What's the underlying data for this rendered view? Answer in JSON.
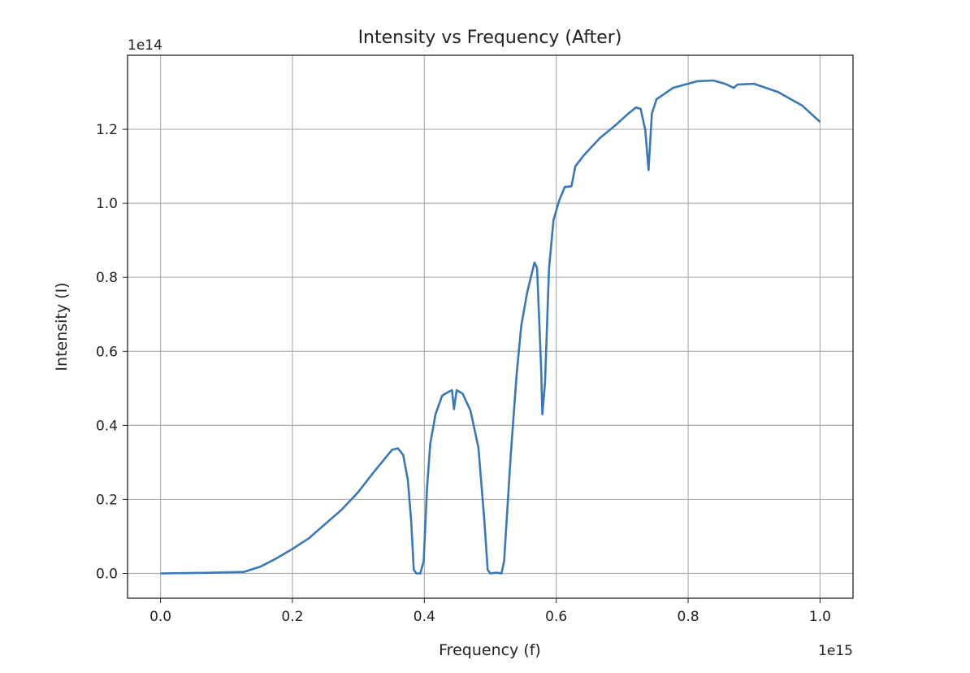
{
  "chart_data": {
    "type": "line",
    "title": "Intensity vs Frequency (After)",
    "xlabel": "Frequency (f)",
    "ylabel": "Intensity (I)",
    "x_offset_text": "1e15",
    "y_offset_text": "1e14",
    "xlim": [
      -0.05,
      1.05
    ],
    "ylim": [
      -0.067,
      1.4
    ],
    "xticks": [
      "0.0",
      "0.2",
      "0.4",
      "0.6",
      "0.8",
      "1.0"
    ],
    "yticks": [
      "0.0",
      "0.2",
      "0.4",
      "0.6",
      "0.8",
      "1.0",
      "1.2"
    ],
    "grid": true,
    "line_color": "#3b78b5",
    "series": [
      {
        "x": [
          0,
          0.077,
          0.126,
          0.151,
          0.175,
          0.2,
          0.225,
          0.25,
          0.274,
          0.299,
          0.323,
          0.341,
          0.351,
          0.36,
          0.368,
          0.375,
          0.38,
          0.384,
          0.388,
          0.394,
          0.399,
          0.404,
          0.409,
          0.417,
          0.427,
          0.436,
          0.442,
          0.445,
          0.449,
          0.458,
          0.47,
          0.482,
          0.491,
          0.496,
          0.5,
          0.509,
          0.517,
          0.521,
          0.531,
          0.54,
          0.547,
          0.556,
          0.567,
          0.571,
          0.577,
          0.579,
          0.583,
          0.589,
          0.596,
          0.605,
          0.613,
          0.623,
          0.629,
          0.642,
          0.666,
          0.691,
          0.709,
          0.721,
          0.728,
          0.735,
          0.74,
          0.745,
          0.752,
          0.777,
          0.814,
          0.838,
          0.856,
          0.869,
          0.875,
          0.9,
          0.936,
          0.973,
          1.0
        ],
        "y": [
          0,
          0.002,
          0.004,
          0.018,
          0.04,
          0.066,
          0.095,
          0.134,
          0.171,
          0.218,
          0.273,
          0.312,
          0.334,
          0.338,
          0.32,
          0.253,
          0.143,
          0.01,
          0,
          0,
          0.033,
          0.23,
          0.35,
          0.43,
          0.48,
          0.49,
          0.495,
          0.444,
          0.495,
          0.486,
          0.44,
          0.34,
          0.143,
          0.01,
          0,
          0.002,
          0,
          0.033,
          0.32,
          0.54,
          0.67,
          0.76,
          0.84,
          0.825,
          0.56,
          0.43,
          0.516,
          0.824,
          0.956,
          1.01,
          1.044,
          1.046,
          1.1,
          1.13,
          1.176,
          1.213,
          1.242,
          1.259,
          1.255,
          1.198,
          1.09,
          1.242,
          1.281,
          1.312,
          1.33,
          1.332,
          1.323,
          1.312,
          1.321,
          1.323,
          1.301,
          1.264,
          1.22
        ]
      }
    ]
  }
}
